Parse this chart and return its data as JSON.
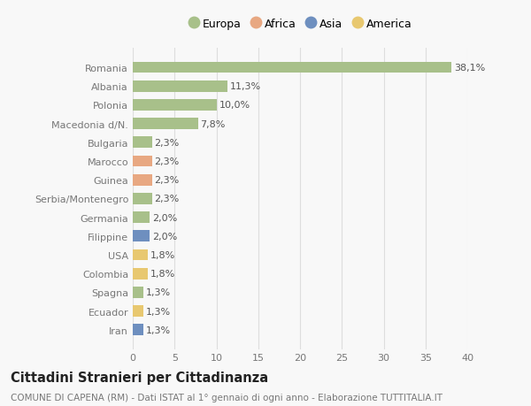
{
  "categories": [
    "Romania",
    "Albania",
    "Polonia",
    "Macedonia d/N.",
    "Bulgaria",
    "Marocco",
    "Guinea",
    "Serbia/Montenegro",
    "Germania",
    "Filippine",
    "USA",
    "Colombia",
    "Spagna",
    "Ecuador",
    "Iran"
  ],
  "values": [
    38.1,
    11.3,
    10.0,
    7.8,
    2.3,
    2.3,
    2.3,
    2.3,
    2.0,
    2.0,
    1.8,
    1.8,
    1.3,
    1.3,
    1.3
  ],
  "labels": [
    "38,1%",
    "11,3%",
    "10,0%",
    "7,8%",
    "2,3%",
    "2,3%",
    "2,3%",
    "2,3%",
    "2,0%",
    "2,0%",
    "1,8%",
    "1,8%",
    "1,3%",
    "1,3%",
    "1,3%"
  ],
  "colors": [
    "#a8c08a",
    "#a8c08a",
    "#a8c08a",
    "#a8c08a",
    "#a8c08a",
    "#e8a882",
    "#e8a882",
    "#a8c08a",
    "#a8c08a",
    "#6e8fbf",
    "#e8c870",
    "#e8c870",
    "#a8c08a",
    "#e8c870",
    "#6e8fbf"
  ],
  "continent_colors": {
    "Europa": "#a8c08a",
    "Africa": "#e8a882",
    "Asia": "#6e8fbf",
    "America": "#e8c870"
  },
  "legend_labels": [
    "Europa",
    "Africa",
    "Asia",
    "America"
  ],
  "title": "Cittadini Stranieri per Cittadinanza",
  "subtitle": "COMUNE DI CAPENA (RM) - Dati ISTAT al 1° gennaio di ogni anno - Elaborazione TUTTITALIA.IT",
  "xlim": [
    0,
    40
  ],
  "xticks": [
    0,
    5,
    10,
    15,
    20,
    25,
    30,
    35,
    40
  ],
  "background_color": "#f8f8f8",
  "grid_color": "#dddddd",
  "bar_height": 0.6,
  "label_fontsize": 8.0,
  "tick_fontsize": 8.0,
  "title_fontsize": 10.5,
  "subtitle_fontsize": 7.5
}
